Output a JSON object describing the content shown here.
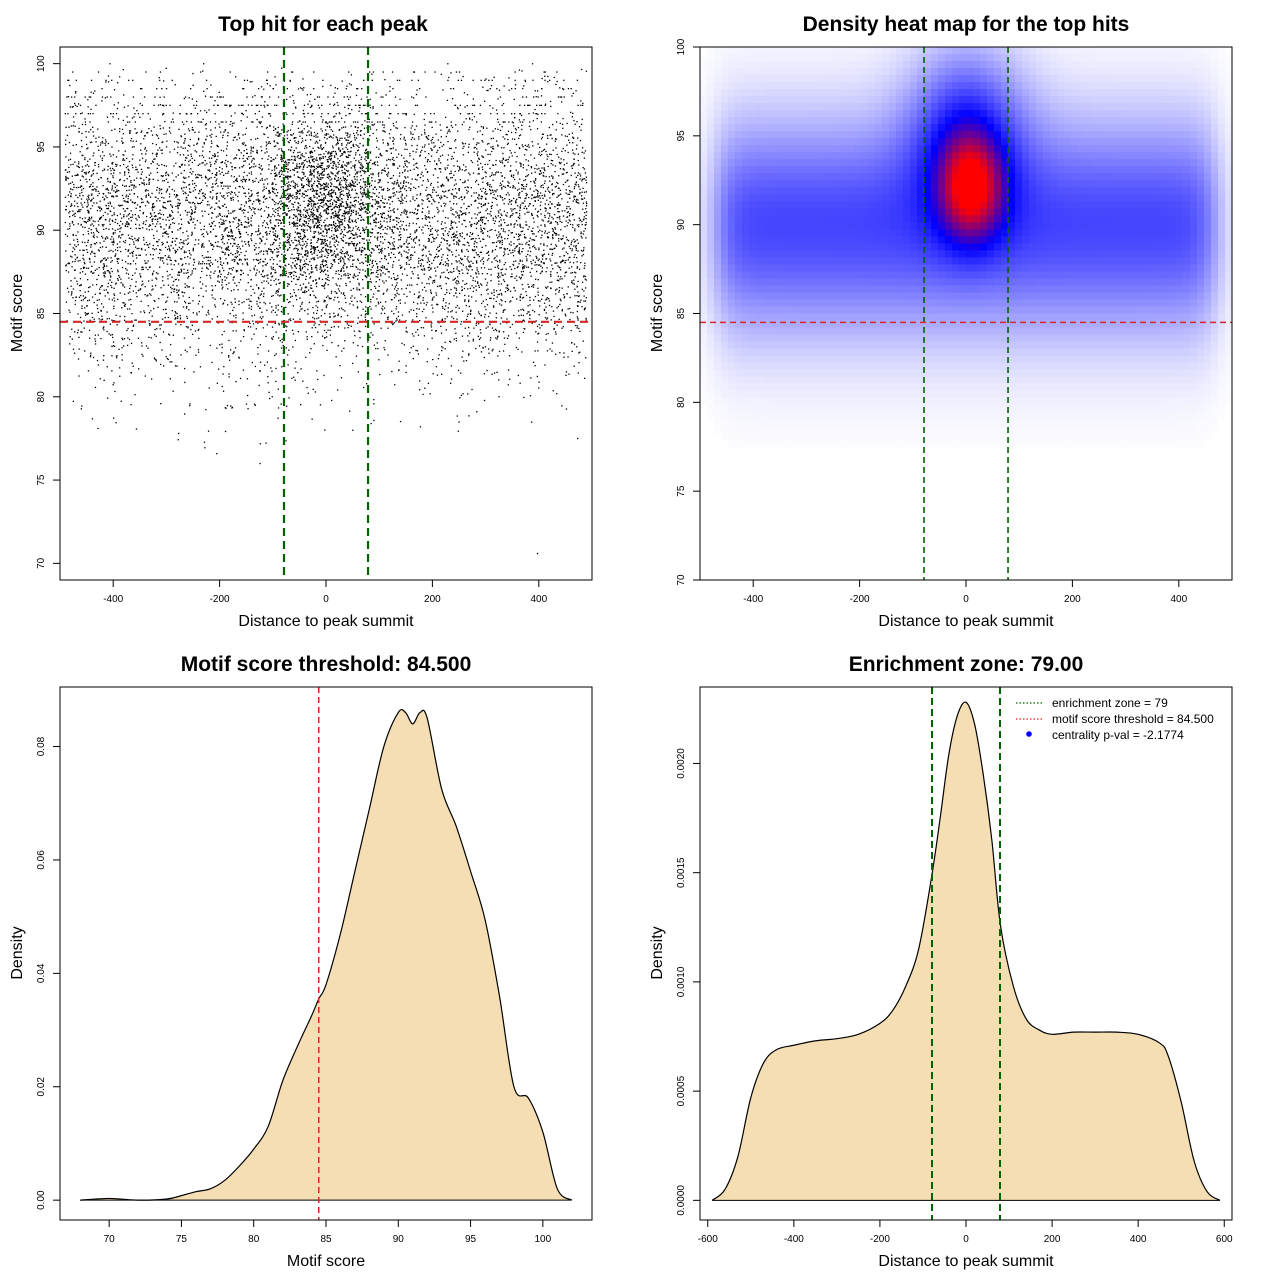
{
  "chart_data": [
    {
      "id": "scatter",
      "type": "scatter",
      "title": "Top hit for each peak",
      "xlabel": "Distance to peak summit",
      "ylabel": "Motif score",
      "xlim": [
        -500,
        500
      ],
      "ylim": [
        69,
        101
      ],
      "xticks": [
        -400,
        -200,
        0,
        200,
        400
      ],
      "yticks": [
        70,
        75,
        80,
        85,
        90,
        95,
        100
      ],
      "vlines": [
        -79,
        79
      ],
      "hline": 84.5,
      "point_count": 9000,
      "colors": {
        "points": "#000000",
        "vline": "#006400",
        "hline": "#d62728"
      }
    },
    {
      "id": "heatmap",
      "type": "heatmap",
      "title": "Density heat map for the top hits",
      "xlabel": "Distance to peak summit",
      "ylabel": "Motif score",
      "xlim": [
        -500,
        500
      ],
      "ylim": [
        70,
        100
      ],
      "xticks": [
        -400,
        -200,
        0,
        200,
        400
      ],
      "yticks": [
        70,
        75,
        80,
        85,
        90,
        95,
        100
      ],
      "hotspot": {
        "x": 10,
        "y": 92
      },
      "vlines": [
        -79,
        79
      ],
      "hline": 84.5,
      "colors": {
        "low": "#ffffff",
        "mid": "#0000ff",
        "high": "#ff0000",
        "vline": "#006400",
        "hline": "#d62728"
      }
    },
    {
      "id": "density-score",
      "type": "area",
      "title": "Motif score threshold: 84.500",
      "xlabel": "Motif score",
      "ylabel": "Density",
      "xlim": [
        66.6,
        103.4
      ],
      "ylim": [
        -0.0035,
        0.0905
      ],
      "xticks": [
        70,
        75,
        80,
        85,
        90,
        95,
        100
      ],
      "yticks": [
        0.0,
        0.02,
        0.04,
        0.06,
        0.08
      ],
      "ytick_labels": [
        "0.00",
        "0.02",
        "0.04",
        "0.06",
        "0.08"
      ],
      "vline": 84.5,
      "x": [
        68,
        70,
        72,
        74,
        75,
        76,
        77,
        78,
        79,
        80,
        81,
        82,
        83,
        84,
        84.5,
        85,
        86,
        87,
        88,
        89,
        90,
        90.5,
        91,
        91.5,
        92,
        93,
        94,
        95,
        96,
        97,
        98,
        99,
        100,
        101,
        102
      ],
      "values": [
        0.0,
        0.0003,
        0.0,
        0.0002,
        0.0008,
        0.0015,
        0.002,
        0.0035,
        0.006,
        0.009,
        0.013,
        0.021,
        0.027,
        0.0325,
        0.0355,
        0.038,
        0.047,
        0.058,
        0.069,
        0.08,
        0.086,
        0.086,
        0.084,
        0.086,
        0.085,
        0.0725,
        0.066,
        0.058,
        0.0495,
        0.036,
        0.02,
        0.018,
        0.012,
        0.002,
        0.0
      ],
      "colors": {
        "fill": "#f5deb3",
        "line": "#000000",
        "vline": "#d62728"
      }
    },
    {
      "id": "density-distance",
      "type": "area",
      "title": "Enrichment zone: 79.00",
      "xlabel": "Distance to peak summit",
      "ylabel": "Density",
      "xlim": [
        -618,
        618
      ],
      "ylim": [
        -9e-05,
        0.00235
      ],
      "xticks": [
        -600,
        -400,
        -200,
        0,
        200,
        400,
        600
      ],
      "yticks": [
        0.0,
        0.0005,
        0.001,
        0.0015,
        0.002
      ],
      "ytick_labels": [
        "0.0000",
        "0.0005",
        "0.0010",
        "0.0015",
        "0.0020"
      ],
      "vlines": [
        -79,
        79
      ],
      "x": [
        -590,
        -560,
        -530,
        -500,
        -470,
        -440,
        -400,
        -350,
        -300,
        -250,
        -200,
        -170,
        -140,
        -110,
        -80,
        -60,
        -40,
        -20,
        0,
        20,
        40,
        60,
        80,
        110,
        140,
        170,
        200,
        250,
        300,
        350,
        400,
        450,
        470,
        500,
        530,
        560,
        590
      ],
      "values": [
        0.0,
        5e-05,
        0.0002,
        0.00047,
        0.00063,
        0.00069,
        0.00071,
        0.00073,
        0.00074,
        0.00076,
        0.00081,
        0.00087,
        0.00098,
        0.00115,
        0.00148,
        0.00175,
        0.00204,
        0.00222,
        0.00228,
        0.00218,
        0.00195,
        0.00165,
        0.00126,
        0.00098,
        0.00083,
        0.00078,
        0.00076,
        0.00077,
        0.00077,
        0.00077,
        0.00076,
        0.00072,
        0.00066,
        0.00045,
        0.00018,
        4e-05,
        0.0
      ],
      "legend": [
        {
          "label": "enrichment zone = 79",
          "kind": "dotted-line",
          "color": "#006400"
        },
        {
          "label": "motif score threshold = 84.500",
          "kind": "dotted-line",
          "color": "#d62728"
        },
        {
          "label": "centrality p-val = -2.1774",
          "kind": "point",
          "color": "#0000ff"
        }
      ],
      "legend_position": "top-right",
      "colors": {
        "fill": "#f5deb3",
        "line": "#000000",
        "vline": "#006400"
      }
    }
  ]
}
